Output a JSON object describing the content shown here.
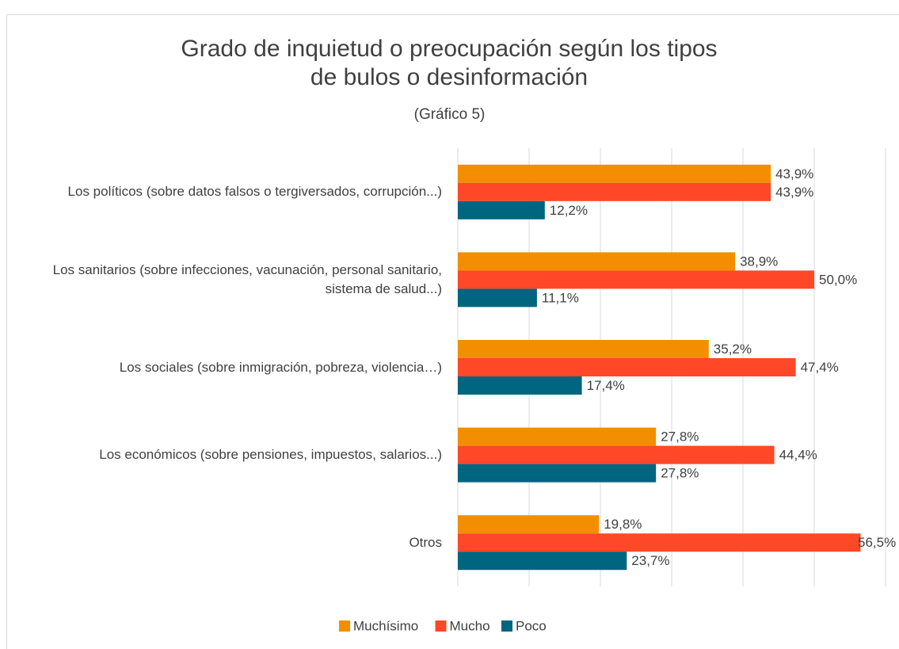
{
  "chart_data": {
    "type": "hbar",
    "title": "Grado de inquietud o preocupación según los tipos de bulos o desinformación",
    "subtitle": "(Gráfico 5)",
    "categories": [
      "Los políticos (sobre datos falsos o tergiversados, corrupción...)",
      "Los sanitarios (sobre infecciones, vacunación, personal sanitario, sistema de salud...)",
      "Los sociales (sobre inmigración, pobreza, violencia…)",
      "Los económicos (sobre pensiones, impuestos, salarios...)",
      "Otros"
    ],
    "series": [
      {
        "name": "Muchísimo",
        "color": "#f28e00",
        "values": [
          43.9,
          38.9,
          35.2,
          27.8,
          19.8
        ],
        "value_labels": [
          "43,9%",
          "38,9%",
          "35,2%",
          "27,8%",
          "19,8%"
        ]
      },
      {
        "name": "Mucho",
        "color": "#ff4828",
        "values": [
          43.9,
          50.0,
          47.4,
          44.4,
          56.5
        ],
        "value_labels": [
          "43,9%",
          "50,0%",
          "47,4%",
          "44,4%",
          "56,5%"
        ]
      },
      {
        "name": "Poco",
        "color": "#00657f",
        "values": [
          12.2,
          11.1,
          17.4,
          27.8,
          23.7
        ],
        "value_labels": [
          "12,2%",
          "11,1%",
          "17,4%",
          "27,8%",
          "23,7%"
        ]
      }
    ],
    "xlim": [
      0,
      60
    ],
    "xticks": [
      0,
      10,
      20,
      30,
      40,
      50,
      60
    ],
    "grid": true,
    "legend": "bottom"
  }
}
